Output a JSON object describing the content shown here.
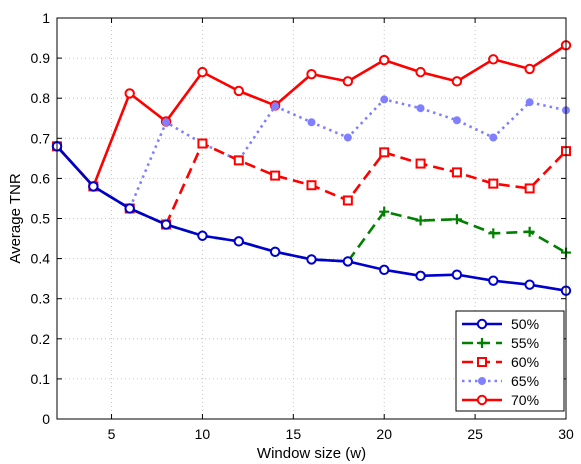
{
  "chart_data": {
    "type": "line",
    "title": "",
    "xlabel": "Window size (w)",
    "ylabel": "Average TNR",
    "xlim": [
      2,
      30
    ],
    "ylim": [
      0,
      1
    ],
    "xticks": [
      5,
      10,
      15,
      20,
      25,
      30
    ],
    "yticks": [
      0,
      0.1,
      0.2,
      0.3,
      0.4,
      0.5,
      0.6,
      0.7,
      0.8,
      0.9,
      1
    ],
    "ytick_labels": [
      "0",
      "0.1",
      "0.2",
      "0.3",
      "0.4",
      "0.5",
      "0.6",
      "0.7",
      "0.8",
      "0.9",
      "1"
    ],
    "xtick_labels": [
      "5",
      "10",
      "15",
      "20",
      "25",
      "30"
    ],
    "grid": true,
    "legend_position": "bottom-right",
    "x": [
      2,
      4,
      6,
      8,
      10,
      12,
      14,
      16,
      18,
      20,
      22,
      24,
      26,
      28,
      30
    ],
    "series": [
      {
        "name": "50%",
        "color": "#0000cc",
        "line_style": "solid",
        "marker": "circle",
        "values": [
          0.68,
          0.58,
          0.525,
          0.485,
          0.457,
          0.443,
          0.417,
          0.398,
          0.393,
          0.372,
          0.357,
          0.36,
          0.345,
          0.335,
          0.32
        ]
      },
      {
        "name": "55%",
        "color": "#008000",
        "line_style": "dashed",
        "marker": "plus",
        "values": [
          0.68,
          0.58,
          0.525,
          0.485,
          0.457,
          0.443,
          0.417,
          0.398,
          0.393,
          0.517,
          0.495,
          0.498,
          0.463,
          0.467,
          0.415
        ]
      },
      {
        "name": "60%",
        "color": "#ff0000",
        "line_style": "dashed",
        "marker": "square",
        "values": [
          0.68,
          0.58,
          0.525,
          0.485,
          0.687,
          0.645,
          0.607,
          0.583,
          0.545,
          0.665,
          0.637,
          0.615,
          0.587,
          0.575,
          0.668
        ]
      },
      {
        "name": "65%",
        "color": "#8080ff",
        "line_style": "dotted",
        "marker": "filled-circle",
        "values": [
          0.68,
          0.58,
          0.525,
          0.74,
          0.687,
          0.645,
          0.78,
          0.74,
          0.702,
          0.797,
          0.775,
          0.745,
          0.702,
          0.79,
          0.77
        ]
      },
      {
        "name": "70%",
        "color": "#ff0000",
        "line_style": "solid",
        "marker": "circle",
        "values": [
          0.68,
          0.58,
          0.812,
          0.742,
          0.865,
          0.818,
          0.782,
          0.86,
          0.842,
          0.895,
          0.865,
          0.842,
          0.897,
          0.873,
          0.932
        ]
      }
    ]
  }
}
